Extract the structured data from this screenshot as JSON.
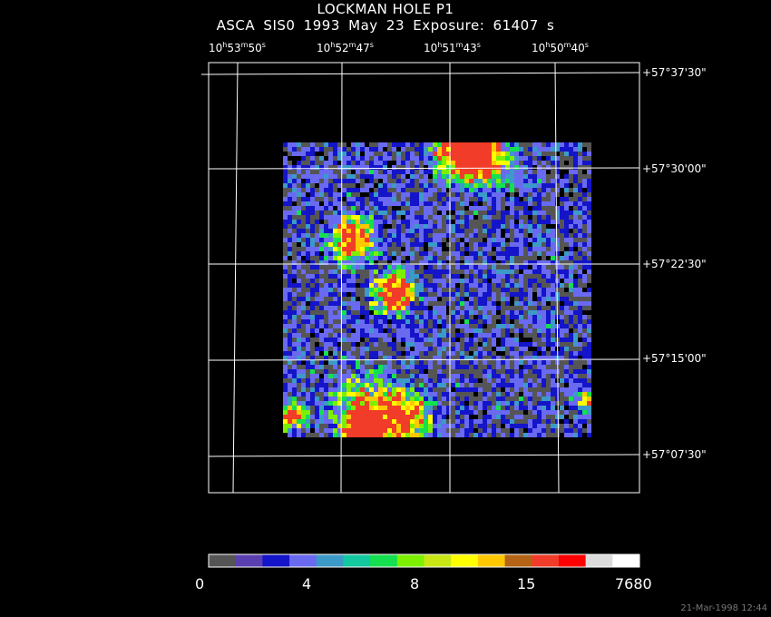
{
  "title": {
    "line1": "LOCKMAN HOLE P1",
    "line2": "ASCA SIS0   1993 May 23   Exposure: 61407 s"
  },
  "ra_labels": [
    {
      "h": "10",
      "m": "53",
      "s": "50"
    },
    {
      "h": "10",
      "m": "52",
      "s": "47"
    },
    {
      "h": "10",
      "m": "51",
      "s": "43"
    },
    {
      "h": "10",
      "m": "50",
      "s": "40"
    }
  ],
  "dec_labels": [
    "+57°37'30\"",
    "+57°30'00\"",
    "+57°22'30\"",
    "+57°15'00\"",
    "+57°07'30\""
  ],
  "colorbar": {
    "colors": [
      "#555555",
      "#5a3fb0",
      "#1414c8",
      "#6a6af0",
      "#3c9ac8",
      "#14c8a0",
      "#14e050",
      "#7cf000",
      "#c8e614",
      "#ffff00",
      "#ffc800",
      "#b46414",
      "#f03c28",
      "#ff0000",
      "#dcdcdc",
      "#ffffff"
    ],
    "labels": [
      "0",
      "4",
      "8",
      "15",
      "7680"
    ]
  },
  "timestamp": "21-Mar-1998 12:44"
}
